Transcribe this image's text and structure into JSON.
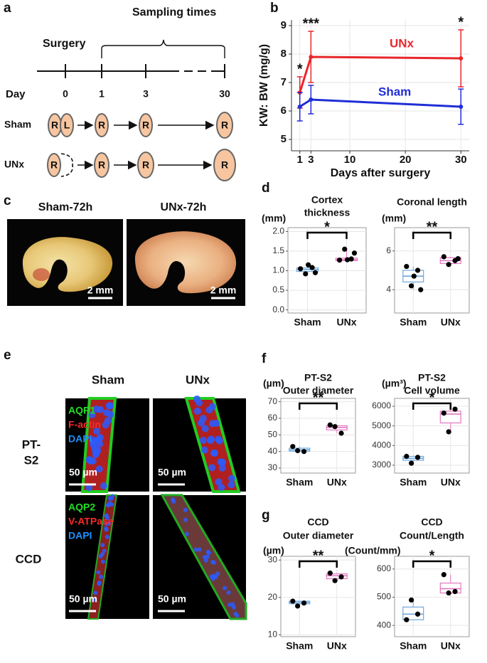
{
  "panel_labels": [
    "a",
    "b",
    "c",
    "d",
    "e",
    "f",
    "g"
  ],
  "timeline": {
    "sampling_label": "Sampling times",
    "surgery_label": "Surgery",
    "day_label": "Day",
    "days": [
      "0",
      "1",
      "3",
      "30"
    ],
    "groups": [
      {
        "name": "Sham",
        "kidneys": [
          "R",
          "L",
          "R",
          "R",
          "R"
        ]
      },
      {
        "name": "UNx",
        "kidneys": [
          "R",
          "R",
          "R",
          "R"
        ]
      }
    ]
  },
  "photos": {
    "titles": [
      "Sham-72h",
      "UNx-72h"
    ],
    "scale_bar": "2 mm"
  },
  "micrographs": {
    "columns": [
      "Sham",
      "UNx"
    ],
    "rows": [
      {
        "name_lines": [
          "PT-",
          "S2"
        ],
        "stains": [
          "AQP1",
          "F-actin",
          "DAPI"
        ]
      },
      {
        "name_lines": [
          "CCD"
        ],
        "stains": [
          "AQP2",
          "V-ATPase",
          "DAPI"
        ]
      }
    ],
    "scale_bar": "50 µm"
  },
  "chart_data": [
    {
      "type": "line",
      "xlabel": "Days after surgery",
      "ylabel": "KW: BW (mg/g)",
      "x": [
        1,
        3,
        30
      ],
      "xlim": [
        -0.5,
        31.5
      ],
      "xticks": [
        1,
        3,
        10,
        20,
        30
      ],
      "ylim": [
        4.6,
        9.2
      ],
      "yticks": [
        5,
        6,
        7,
        8,
        9
      ],
      "grid": true,
      "series": [
        {
          "name": "UNx",
          "color": "#e8262b",
          "values": [
            6.65,
            7.9,
            7.85
          ],
          "errors": [
            0.55,
            0.9,
            1.0
          ]
        },
        {
          "name": "Sham",
          "color": "#1f2ed6",
          "values": [
            6.15,
            6.4,
            6.15
          ],
          "errors": [
            0.5,
            0.5,
            0.62
          ]
        }
      ],
      "annotations": [
        {
          "text": "*",
          "x": 1
        },
        {
          "text": "***",
          "x": 3
        },
        {
          "text": "*",
          "x": 30
        }
      ]
    },
    {
      "type": "box",
      "title": [
        "Cortex",
        "thickness"
      ],
      "unit": "(mm)",
      "significance": "*",
      "categories": [
        "Sham",
        "UNx"
      ],
      "colors": [
        "#6fa8dc",
        "#e377c2"
      ],
      "ylim": [
        -0.08,
        2.1
      ],
      "yticks": [
        {
          "value": 0,
          "label": "0.0"
        },
        0.5,
        {
          "value": 1,
          "label": "1.0"
        },
        1.5,
        {
          "value": 2,
          "label": "2.0"
        }
      ],
      "points": [
        [
          1.05,
          1.08,
          0.92,
          0.95,
          1.15
        ],
        [
          1.27,
          1.3,
          1.55,
          1.45,
          1.28
        ]
      ],
      "boxes": [
        [
          0.92,
          0.98,
          1.03,
          1.07,
          1.15
        ],
        [
          1.25,
          1.26,
          1.28,
          1.32,
          1.55
        ]
      ]
    },
    {
      "type": "box",
      "title": [
        "Coronal length"
      ],
      "unit": "(mm)",
      "significance": "**",
      "categories": [
        "Sham",
        "UNx"
      ],
      "colors": [
        "#6fa8dc",
        "#e377c2"
      ],
      "ylim": [
        2.8,
        7.2
      ],
      "yticks": [
        4,
        6
      ],
      "points": [
        [
          5.2,
          5.0,
          4.2,
          4.0,
          4.7
        ],
        [
          5.7,
          5.5,
          5.3,
          5.6
        ]
      ],
      "boxes": [
        [
          4.0,
          4.4,
          4.7,
          5.0,
          5.2
        ],
        [
          5.3,
          5.35,
          5.5,
          5.65,
          5.7
        ]
      ]
    },
    {
      "type": "box",
      "title": [
        "PT-S2",
        "Outer diameter"
      ],
      "unit": "(µm)",
      "significance": "**",
      "categories": [
        "Sham",
        "UNx"
      ],
      "colors": [
        "#6fa8dc",
        "#e377c2"
      ],
      "ylim": [
        27,
        72
      ],
      "yticks": [
        30,
        40,
        50,
        60,
        70
      ],
      "points": [
        [
          43,
          40,
          40.5
        ],
        [
          56,
          51,
          55
        ]
      ],
      "boxes": [
        [
          40,
          40.2,
          41,
          42,
          43
        ],
        [
          51,
          53,
          54.5,
          55.5,
          56
        ]
      ]
    },
    {
      "type": "box",
      "title": [
        "PT-S2",
        "Cell volume"
      ],
      "unit": "(µm³)",
      "significance": "*",
      "categories": [
        "Sham",
        "UNx"
      ],
      "colors": [
        "#6fa8dc",
        "#e377c2"
      ],
      "ylim": [
        2600,
        6400
      ],
      "yticks": [
        3000,
        4000,
        5000,
        6000
      ],
      "points": [
        [
          3450,
          3400,
          3100
        ],
        [
          5650,
          5850,
          4700
        ]
      ],
      "boxes": [
        [
          3100,
          3250,
          3350,
          3450,
          3450
        ],
        [
          4650,
          5150,
          5600,
          5750,
          5850
        ]
      ]
    },
    {
      "type": "box",
      "title": [
        "CCD",
        "Outer diameter"
      ],
      "unit": "(µm)",
      "significance": "**",
      "categories": [
        "Sham",
        "UNx"
      ],
      "colors": [
        "#6fa8dc",
        "#e377c2"
      ],
      "ylim": [
        9.5,
        31
      ],
      "yticks": [
        10,
        20,
        30
      ],
      "points": [
        [
          19,
          18.5,
          17.7
        ],
        [
          26.5,
          25.5,
          24.5
        ]
      ],
      "boxes": [
        [
          17.7,
          18.3,
          18.7,
          19,
          19
        ],
        [
          24.5,
          25,
          25.8,
          26.3,
          26.5
        ]
      ]
    },
    {
      "type": "box",
      "title": [
        "CCD",
        "Count/Length"
      ],
      "unit": "(Count/mm)",
      "significance": "*",
      "categories": [
        "Sham",
        "UNx"
      ],
      "colors": [
        "#6fa8dc",
        "#e377c2"
      ],
      "ylim": [
        360,
        645
      ],
      "yticks": [
        400,
        500,
        600
      ],
      "points": [
        [
          420,
          440,
          490
        ],
        [
          580,
          520,
          515
        ]
      ],
      "boxes": [
        [
          420,
          420,
          440,
          465,
          490
        ],
        [
          515,
          515,
          530,
          550,
          580
        ]
      ]
    }
  ]
}
